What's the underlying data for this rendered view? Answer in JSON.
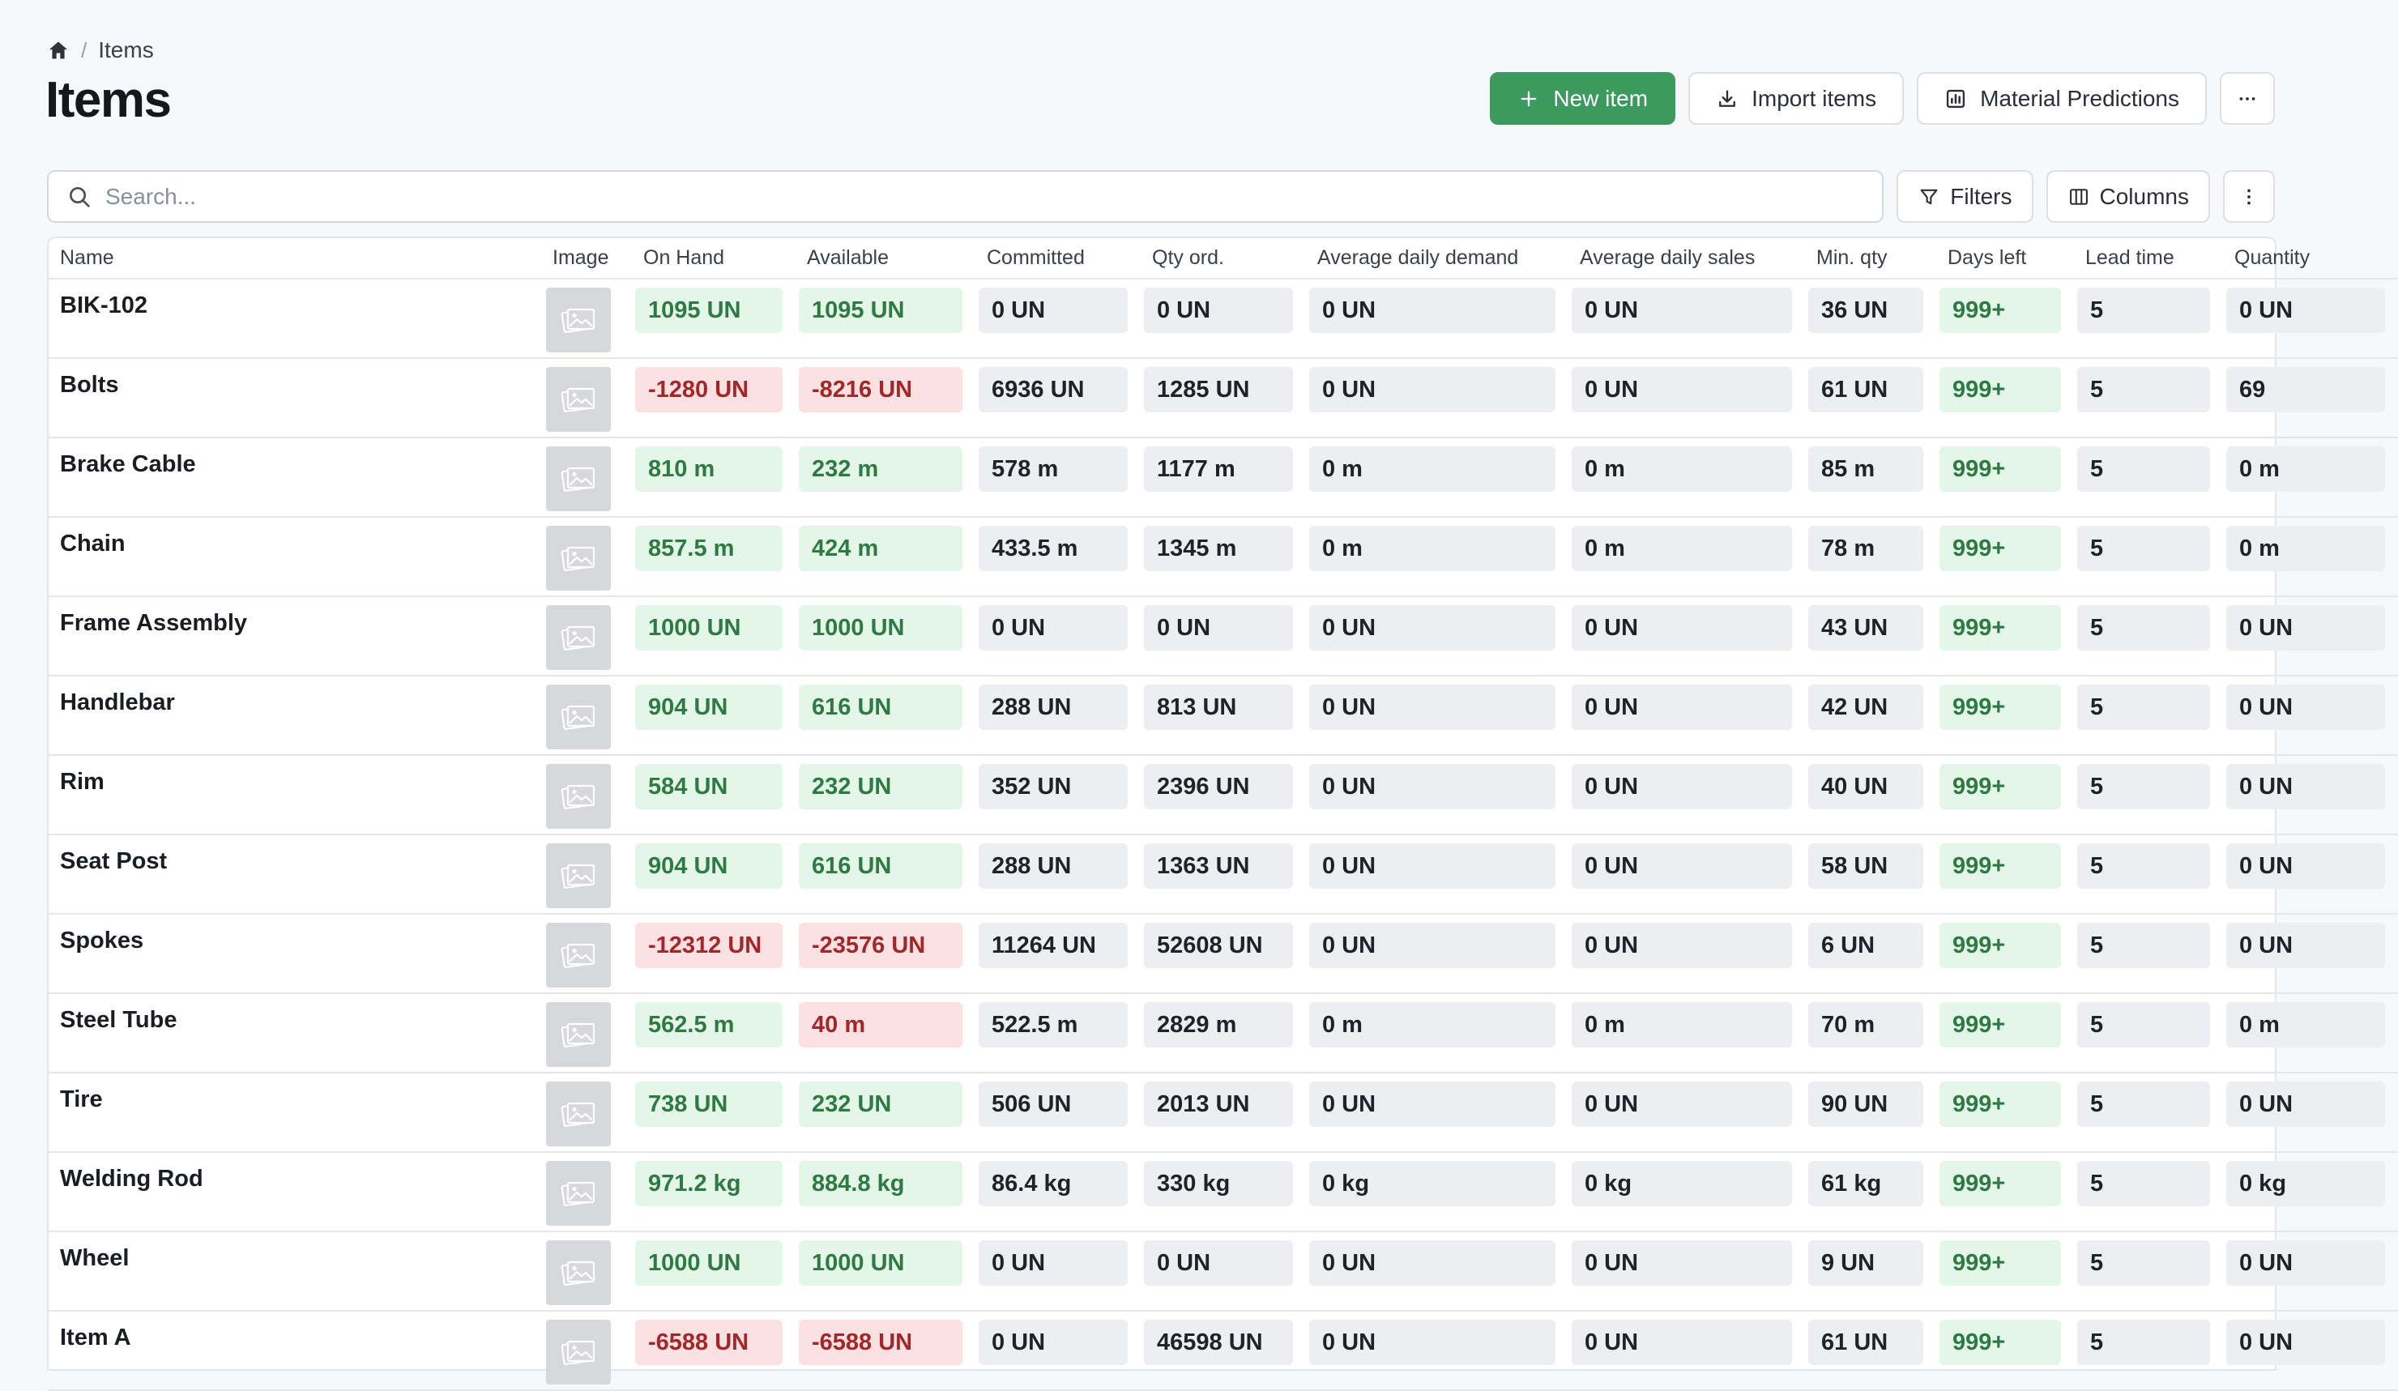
{
  "breadcrumb": {
    "home_icon": "home-icon",
    "current": "Items"
  },
  "page": {
    "title": "Items"
  },
  "actions": {
    "new_item": "New item",
    "import_items": "Import items",
    "material_predictions": "Material Predictions",
    "more_icon": "more-horizontal-icon"
  },
  "toolbar": {
    "search_placeholder": "Search...",
    "filters": "Filters",
    "columns": "Columns",
    "options_icon": "more-vertical-icon"
  },
  "colors": {
    "primary": "#3d9a5f",
    "positive_bg": "#e3f6e7",
    "positive_text": "#2f7a43",
    "negative_bg": "#fbe1e1",
    "negative_text": "#a2262a"
  },
  "table": {
    "columns": [
      {
        "key": "name",
        "label": "Name"
      },
      {
        "key": "image",
        "label": "Image"
      },
      {
        "key": "on_hand",
        "label": "On Hand"
      },
      {
        "key": "available",
        "label": "Available"
      },
      {
        "key": "committed",
        "label": "Committed"
      },
      {
        "key": "qty_ord",
        "label": "Qty ord."
      },
      {
        "key": "avg_daily_demand",
        "label": "Average daily demand"
      },
      {
        "key": "avg_daily_sales",
        "label": "Average daily sales"
      },
      {
        "key": "min_qty",
        "label": "Min. qty"
      },
      {
        "key": "days_left",
        "label": "Days left"
      },
      {
        "key": "lead_time",
        "label": "Lead time"
      },
      {
        "key": "qua",
        "label": "Quantity"
      }
    ],
    "rows": [
      {
        "name": "BIK-102",
        "on_hand": "1095 UN",
        "on_hand_status": "pos",
        "available": "1095 UN",
        "available_status": "pos",
        "committed": "0 UN",
        "qty_ord": "0 UN",
        "avg_daily_demand": "0 UN",
        "avg_daily_sales": "0 UN",
        "min_qty": "36 UN",
        "days_left": "999+",
        "lead_time": "5",
        "qua": "0 UN"
      },
      {
        "name": "Bolts",
        "on_hand": "-1280 UN",
        "on_hand_status": "neg",
        "available": "-8216 UN",
        "available_status": "neg",
        "committed": "6936 UN",
        "qty_ord": "1285 UN",
        "avg_daily_demand": "0 UN",
        "avg_daily_sales": "0 UN",
        "min_qty": "61 UN",
        "days_left": "999+",
        "lead_time": "5",
        "qua": "69"
      },
      {
        "name": "Brake Cable",
        "on_hand": "810 m",
        "on_hand_status": "pos",
        "available": "232 m",
        "available_status": "pos",
        "committed": "578 m",
        "qty_ord": "1177 m",
        "avg_daily_demand": "0 m",
        "avg_daily_sales": "0 m",
        "min_qty": "85 m",
        "days_left": "999+",
        "lead_time": "5",
        "qua": "0 m"
      },
      {
        "name": "Chain",
        "on_hand": "857.5 m",
        "on_hand_status": "pos",
        "available": "424 m",
        "available_status": "pos",
        "committed": "433.5 m",
        "qty_ord": "1345 m",
        "avg_daily_demand": "0 m",
        "avg_daily_sales": "0 m",
        "min_qty": "78 m",
        "days_left": "999+",
        "lead_time": "5",
        "qua": "0 m"
      },
      {
        "name": "Frame Assembly",
        "on_hand": "1000 UN",
        "on_hand_status": "pos",
        "available": "1000 UN",
        "available_status": "pos",
        "committed": "0 UN",
        "qty_ord": "0 UN",
        "avg_daily_demand": "0 UN",
        "avg_daily_sales": "0 UN",
        "min_qty": "43 UN",
        "days_left": "999+",
        "lead_time": "5",
        "qua": "0 UN"
      },
      {
        "name": "Handlebar",
        "on_hand": "904 UN",
        "on_hand_status": "pos",
        "available": "616 UN",
        "available_status": "pos",
        "committed": "288 UN",
        "qty_ord": "813 UN",
        "avg_daily_demand": "0 UN",
        "avg_daily_sales": "0 UN",
        "min_qty": "42 UN",
        "days_left": "999+",
        "lead_time": "5",
        "qua": "0 UN"
      },
      {
        "name": "Rim",
        "on_hand": "584 UN",
        "on_hand_status": "pos",
        "available": "232 UN",
        "available_status": "pos",
        "committed": "352 UN",
        "qty_ord": "2396 UN",
        "avg_daily_demand": "0 UN",
        "avg_daily_sales": "0 UN",
        "min_qty": "40 UN",
        "days_left": "999+",
        "lead_time": "5",
        "qua": "0 UN"
      },
      {
        "name": "Seat Post",
        "on_hand": "904 UN",
        "on_hand_status": "pos",
        "available": "616 UN",
        "available_status": "pos",
        "committed": "288 UN",
        "qty_ord": "1363 UN",
        "avg_daily_demand": "0 UN",
        "avg_daily_sales": "0 UN",
        "min_qty": "58 UN",
        "days_left": "999+",
        "lead_time": "5",
        "qua": "0 UN"
      },
      {
        "name": "Spokes",
        "on_hand": "-12312 UN",
        "on_hand_status": "neg",
        "available": "-23576 UN",
        "available_status": "neg",
        "committed": "11264 UN",
        "qty_ord": "52608 UN",
        "avg_daily_demand": "0 UN",
        "avg_daily_sales": "0 UN",
        "min_qty": "6 UN",
        "days_left": "999+",
        "lead_time": "5",
        "qua": "0 UN"
      },
      {
        "name": "Steel Tube",
        "on_hand": "562.5 m",
        "on_hand_status": "pos",
        "available": "40 m",
        "available_status": "neg",
        "committed": "522.5 m",
        "qty_ord": "2829 m",
        "avg_daily_demand": "0 m",
        "avg_daily_sales": "0 m",
        "min_qty": "70 m",
        "days_left": "999+",
        "lead_time": "5",
        "qua": "0 m"
      },
      {
        "name": "Tire",
        "on_hand": "738 UN",
        "on_hand_status": "pos",
        "available": "232 UN",
        "available_status": "pos",
        "committed": "506 UN",
        "qty_ord": "2013 UN",
        "avg_daily_demand": "0 UN",
        "avg_daily_sales": "0 UN",
        "min_qty": "90 UN",
        "days_left": "999+",
        "lead_time": "5",
        "qua": "0 UN"
      },
      {
        "name": "Welding Rod",
        "on_hand": "971.2 kg",
        "on_hand_status": "pos",
        "available": "884.8 kg",
        "available_status": "pos",
        "committed": "86.4 kg",
        "qty_ord": "330 kg",
        "avg_daily_demand": "0 kg",
        "avg_daily_sales": "0 kg",
        "min_qty": "61 kg",
        "days_left": "999+",
        "lead_time": "5",
        "qua": "0 kg"
      },
      {
        "name": "Wheel",
        "on_hand": "1000 UN",
        "on_hand_status": "pos",
        "available": "1000 UN",
        "available_status": "pos",
        "committed": "0 UN",
        "qty_ord": "0 UN",
        "avg_daily_demand": "0 UN",
        "avg_daily_sales": "0 UN",
        "min_qty": "9 UN",
        "days_left": "999+",
        "lead_time": "5",
        "qua": "0 UN"
      },
      {
        "name": "Item A",
        "on_hand": "-6588 UN",
        "on_hand_status": "neg",
        "available": "-6588 UN",
        "available_status": "neg",
        "committed": "0 UN",
        "qty_ord": "46598 UN",
        "avg_daily_demand": "0 UN",
        "avg_daily_sales": "0 UN",
        "min_qty": "61 UN",
        "days_left": "999+",
        "lead_time": "5",
        "qua": "0 UN"
      }
    ]
  }
}
